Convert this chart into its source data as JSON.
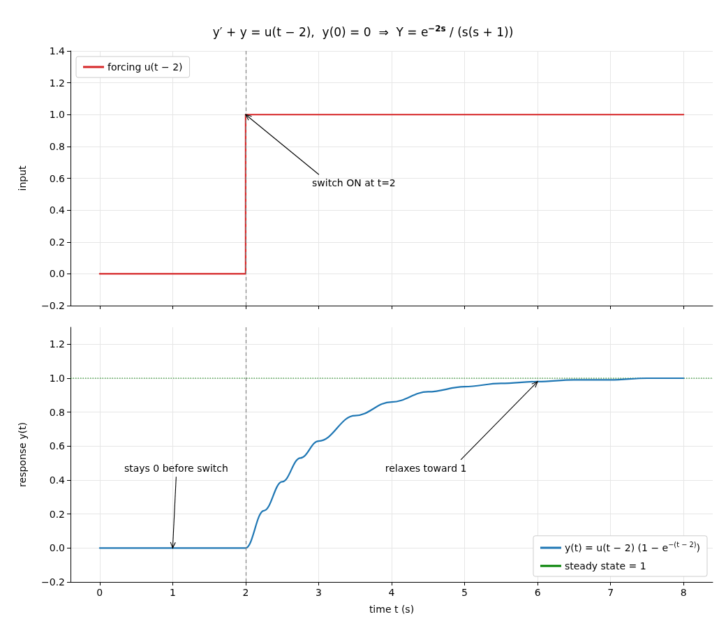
{
  "chart_data": [
    {
      "type": "step",
      "title": "y′ + y = u(t − 2),  y(0) = 0  ⇒  Y = e$^{−2s}$ / (s(s + 1))",
      "ylabel": "input",
      "series": [
        {
          "name": "forcing u(t − 2)",
          "color": "#d62728",
          "x": [
            0,
            2,
            8
          ],
          "values": [
            0,
            1,
            1
          ]
        }
      ],
      "xlim": [
        -0.4,
        8.4
      ],
      "xticks": [
        0,
        1,
        2,
        3,
        4,
        5,
        6,
        7,
        8
      ],
      "ylim": [
        -0.2,
        1.4
      ],
      "yticks": [
        {
          "value": -0.2,
          "label": "−0.2"
        },
        {
          "value": 0,
          "label": "0.0"
        },
        {
          "value": 0.2,
          "label": "0.2"
        },
        {
          "value": 0.4,
          "label": "0.4"
        },
        {
          "value": 0.6,
          "label": "0.6"
        },
        {
          "value": 0.8,
          "label": "0.8"
        },
        {
          "value": 1,
          "label": "1.0"
        },
        {
          "value": 1.2,
          "label": "1.2"
        },
        {
          "value": 1.4,
          "label": "1.4"
        }
      ],
      "tick_labels": "y",
      "grid": true,
      "legend": "top left",
      "marker": "none",
      "ref_lines": [
        {
          "axis": "x",
          "value": 2,
          "color": "#808080",
          "line_style": "dashed"
        }
      ],
      "annotations": [
        {
          "text": "switch ON at t=2",
          "x": 2,
          "y": 1
        }
      ]
    },
    {
      "type": "line",
      "xlabel": "time t (s)",
      "ylabel": "response y(t)",
      "series": [
        {
          "name": "y(t) = u(t − 2) (1 − e$^{−(t − 2)}$)",
          "color": "#1f77b4",
          "x": [
            0,
            1,
            2,
            2.25,
            2.5,
            2.75,
            3,
            3.5,
            4,
            4.5,
            5,
            5.5,
            6,
            6.5,
            7,
            7.5,
            8
          ],
          "values": [
            0,
            0,
            0,
            0.22,
            0.39,
            0.53,
            0.63,
            0.78,
            0.86,
            0.92,
            0.95,
            0.97,
            0.98,
            0.99,
            0.99,
            1.0,
            1.0
          ]
        }
      ],
      "xlim": [
        -0.4,
        8.4
      ],
      "xticks": [
        0,
        1,
        2,
        3,
        4,
        5,
        6,
        7,
        8
      ],
      "ylim": [
        -0.2,
        1.3
      ],
      "yticks": [
        {
          "value": -0.2,
          "label": "−0.2"
        },
        {
          "value": 0,
          "label": "0.0"
        },
        {
          "value": 0.2,
          "label": "0.2"
        },
        {
          "value": 0.4,
          "label": "0.4"
        },
        {
          "value": 0.6,
          "label": "0.6"
        },
        {
          "value": 0.8,
          "label": "0.8"
        },
        {
          "value": 1,
          "label": "1.0"
        },
        {
          "value": 1.2,
          "label": "1.2"
        }
      ],
      "grid": true,
      "legend": "bottom right",
      "marker": "none",
      "ref_lines": [
        {
          "axis": "x",
          "value": 2,
          "color": "#808080",
          "line_style": "dashed"
        },
        {
          "axis": "y",
          "value": 1,
          "label": "steady state = 1",
          "color": "#008000",
          "line_style": "dotted"
        }
      ],
      "annotations": [
        {
          "text": "stays 0 before switch",
          "x": 1,
          "y": 0
        },
        {
          "text": "relaxes toward 1",
          "x": 6,
          "y": 0.98
        }
      ]
    }
  ]
}
